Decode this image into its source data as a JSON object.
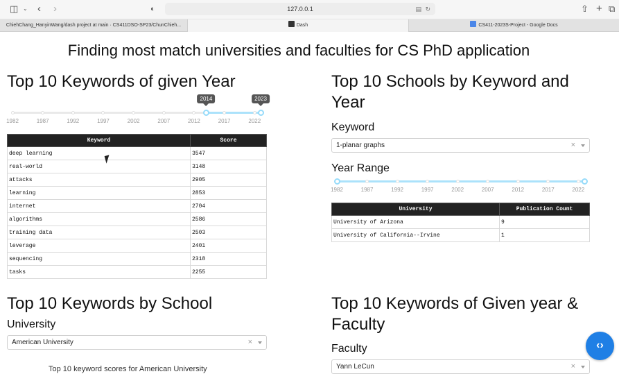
{
  "browser": {
    "url": "127.0.0.1",
    "tabs": [
      "ChiehChang_HanyinWang/dash project at main · CS411DSO-SP23/ChunChieh...",
      "Dash",
      "CS411-2023S-Project - Google Docs"
    ]
  },
  "page": {
    "title": "Finding most match universities and faculties for CS PhD application"
  },
  "keywords_by_year": {
    "heading": "Top 10 Keywords of given Year",
    "slider": {
      "min": 1982,
      "max": 2023,
      "value": [
        2014,
        2023
      ],
      "ticks": [
        "1982",
        "1987",
        "1992",
        "1997",
        "2002",
        "2007",
        "2012",
        "2017",
        "2022"
      ],
      "tooltip_low": "2014",
      "tooltip_high": "2023"
    },
    "columns": [
      "Keyword",
      "Score"
    ],
    "rows": [
      [
        "deep learning",
        "3547"
      ],
      [
        "real-world",
        "3148"
      ],
      [
        "attacks",
        "2905"
      ],
      [
        "learning",
        "2853"
      ],
      [
        "internet",
        "2704"
      ],
      [
        "algorithms",
        "2586"
      ],
      [
        "training data",
        "2503"
      ],
      [
        "leverage",
        "2401"
      ],
      [
        "sequencing",
        "2318"
      ],
      [
        "tasks",
        "2255"
      ]
    ]
  },
  "schools_by_keyword": {
    "heading": "Top 10 Schools by Keyword and Year",
    "keyword_label": "Keyword",
    "keyword_value": "1-planar graphs",
    "year_range_label": "Year Range",
    "slider": {
      "min": 1982,
      "max": 2023,
      "value": [
        1982,
        2023
      ],
      "ticks": [
        "1982",
        "1987",
        "1992",
        "1997",
        "2002",
        "2007",
        "2012",
        "2017",
        "2022"
      ]
    },
    "columns": [
      "University",
      "Publication Count"
    ],
    "rows": [
      [
        "University of Arizona",
        "9"
      ],
      [
        "University of California--Irvine",
        "1"
      ]
    ]
  },
  "keywords_by_school": {
    "heading": "Top 10 Keywords by School",
    "university_label": "University",
    "university_value": "American University",
    "chart_caption": "Top 10 keyword scores for American University"
  },
  "keywords_by_faculty": {
    "heading": "Top 10 Keywords of Given year & Faculty",
    "faculty_label": "Faculty",
    "faculty_value": "Yann LeCun"
  },
  "colors": {
    "slider_track": "#abe2fb",
    "slider_handle": "#96dbfa",
    "table_header": "#222222",
    "fab": "#1f7fe5"
  }
}
